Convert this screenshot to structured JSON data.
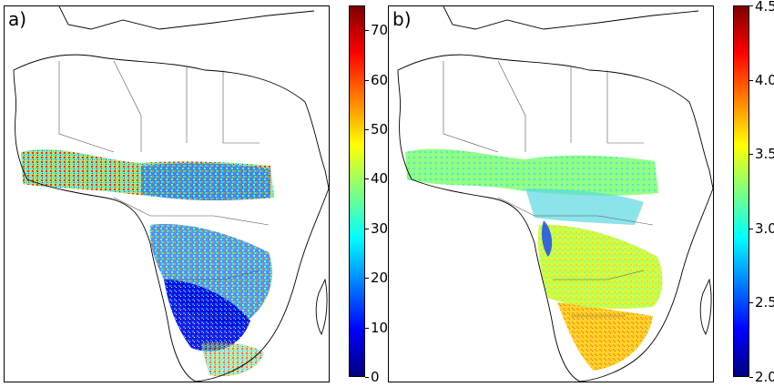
{
  "panels": [
    {
      "label": "a)",
      "colorbar": {
        "min": 0,
        "max": 75,
        "ticks": [
          "0",
          "10",
          "20",
          "30",
          "40",
          "50",
          "60",
          "70"
        ],
        "tick_values": [
          0,
          10,
          20,
          30,
          40,
          50,
          60,
          70
        ],
        "colormap": "jet"
      }
    },
    {
      "label": "b)",
      "colorbar": {
        "min": 2.0,
        "max": 4.5,
        "ticks": [
          "2.0",
          "2.5",
          "3.0",
          "3.5",
          "4.0",
          "4.5"
        ],
        "tick_values": [
          2.0,
          2.5,
          3.0,
          3.5,
          4.0,
          4.5
        ],
        "colormap": "jet"
      }
    }
  ],
  "colors": {
    "jet": [
      "#00007f",
      "#0000ff",
      "#007fff",
      "#00ffff",
      "#7fff7f",
      "#ffff00",
      "#ff7f00",
      "#ff0000",
      "#7f0000"
    ],
    "border": "#555555",
    "coast": "#000000"
  }
}
